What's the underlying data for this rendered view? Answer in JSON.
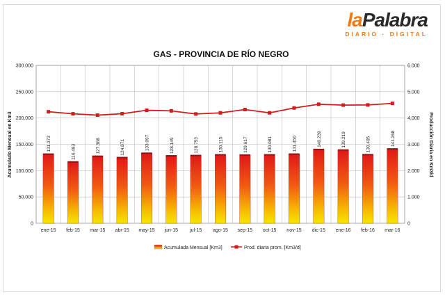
{
  "logo": {
    "part1": "la",
    "part2": "Palabra",
    "sub": "DIARIO · DIGITAL"
  },
  "colors": {
    "bar_top": "#e01818",
    "bar_bottom": "#f6e600",
    "line": "#d21c1c",
    "grid": "#bdbdbd"
  },
  "chart_data": {
    "type": "bar",
    "title": "GAS - PROVINCIA DE RÍO NEGRO",
    "ylabel": "Acumulado Mensual en Km3",
    "y2label": "Producción Diaria en Km3/d",
    "categories": [
      "ene-15",
      "feb-15",
      "mar-15",
      "abr-15",
      "may-15",
      "jun-15",
      "jul-15",
      "ago-15",
      "sep-15",
      "oct-15",
      "nov-15",
      "dic-15",
      "ene-16",
      "feb-16",
      "mar-16"
    ],
    "ylim": [
      0,
      300000
    ],
    "y2lim": [
      0,
      6000
    ],
    "yticks": [
      "0",
      "50.000",
      "100.000",
      "150.000",
      "200.000",
      "250.000",
      "300.000"
    ],
    "y2ticks": [
      "0",
      "1.000",
      "2.000",
      "3.000",
      "4.000",
      "5.000",
      "6.000"
    ],
    "series": [
      {
        "name": "Acumulada Mensual [Km3]",
        "type": "bar",
        "axis": "left",
        "values": [
          131373,
          116483,
          127388,
          124871,
          133097,
          128149,
          128753,
          130115,
          129617,
          130081,
          131450,
          140239,
          139219,
          130405,
          141268
        ],
        "labels": [
          "131.373",
          "116.483",
          "127.388",
          "124.871",
          "133.097",
          "128.149",
          "128.753",
          "130.115",
          "129.617",
          "130.081",
          "131.450",
          "140.239",
          "139.219",
          "130.405",
          "141.268"
        ]
      },
      {
        "name": "Prod. diaria prom. [Km3/d]",
        "type": "line",
        "axis": "right",
        "values": [
          4238,
          4160,
          4109,
          4162,
          4294,
          4272,
          4153,
          4197,
          4321,
          4196,
          4382,
          4524,
          4491,
          4497,
          4557
        ]
      }
    ],
    "grid": true,
    "legend": "bottom"
  }
}
